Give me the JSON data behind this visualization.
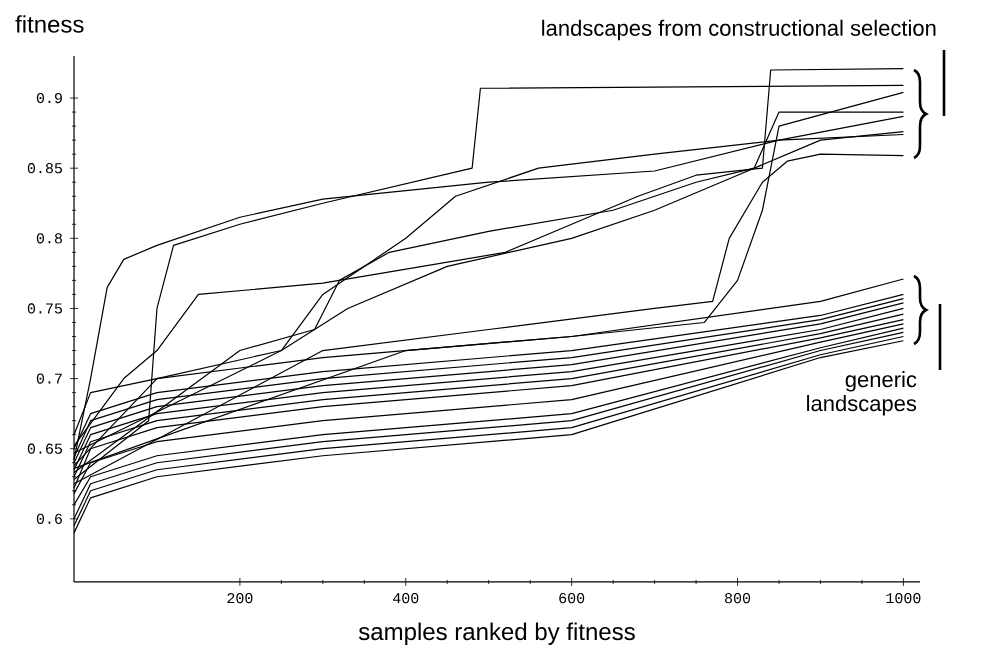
{
  "chart_data": {
    "type": "line",
    "xlabel": "samples ranked by fitness",
    "ylabel": "fitness",
    "xlim": [
      0,
      1020
    ],
    "ylim": [
      0.555,
      0.93
    ],
    "xticks": [
      200,
      400,
      600,
      800,
      1000
    ],
    "yticks": [
      0.6,
      0.65,
      0.7,
      0.75,
      0.8,
      0.85,
      0.9
    ],
    "grid": false,
    "marker": "none",
    "line_style": "solid",
    "annotations": [
      "landscapes from constructional selection",
      "generic landscapes"
    ],
    "series": [
      {
        "color": "#000000",
        "x": [
          0,
          20,
          40,
          60,
          100,
          200,
          300,
          500,
          700,
          850,
          1000
        ],
        "values": [
          0.642,
          0.7,
          0.765,
          0.785,
          0.795,
          0.815,
          0.828,
          0.84,
          0.848,
          0.87,
          0.874
        ]
      },
      {
        "color": "#000000",
        "x": [
          0,
          90,
          100,
          120,
          200,
          300,
          480,
          490,
          1000
        ],
        "values": [
          0.628,
          0.67,
          0.75,
          0.795,
          0.81,
          0.825,
          0.85,
          0.907,
          0.909
        ]
      },
      {
        "color": "#000000",
        "x": [
          0,
          60,
          100,
          150,
          300,
          420,
          520,
          600,
          680,
          750,
          830,
          840,
          1000
        ],
        "values": [
          0.652,
          0.7,
          0.72,
          0.76,
          0.768,
          0.78,
          0.79,
          0.81,
          0.83,
          0.845,
          0.85,
          0.92,
          0.921
        ]
      },
      {
        "color": "#000000",
        "x": [
          0,
          100,
          250,
          300,
          400,
          460,
          560,
          700,
          850,
          1000
        ],
        "values": [
          0.638,
          0.7,
          0.72,
          0.76,
          0.8,
          0.83,
          0.85,
          0.86,
          0.87,
          0.887
        ]
      },
      {
        "color": "#000000",
        "x": [
          0,
          200,
          290,
          320,
          380,
          500,
          650,
          750,
          820,
          850,
          1000
        ],
        "values": [
          0.633,
          0.72,
          0.735,
          0.77,
          0.79,
          0.805,
          0.82,
          0.84,
          0.85,
          0.89,
          0.89
        ]
      },
      {
        "color": "#000000",
        "x": [
          0,
          250,
          330,
          450,
          600,
          700,
          800,
          900,
          1000
        ],
        "values": [
          0.647,
          0.72,
          0.75,
          0.78,
          0.8,
          0.82,
          0.845,
          0.87,
          0.876
        ]
      },
      {
        "color": "#000000",
        "x": [
          0,
          300,
          500,
          700,
          770,
          790,
          830,
          860,
          900,
          1000
        ],
        "values": [
          0.625,
          0.72,
          0.735,
          0.75,
          0.755,
          0.8,
          0.84,
          0.855,
          0.86,
          0.859
        ]
      },
      {
        "color": "#000000",
        "x": [
          0,
          400,
          600,
          760,
          800,
          830,
          850,
          1000
        ],
        "values": [
          0.636,
          0.72,
          0.73,
          0.74,
          0.77,
          0.82,
          0.88,
          0.904
        ]
      },
      {
        "color": "#000000",
        "x": [
          0,
          20,
          100,
          300,
          600,
          900,
          1000
        ],
        "values": [
          0.66,
          0.69,
          0.7,
          0.715,
          0.73,
          0.755,
          0.771
        ]
      },
      {
        "color": "#000000",
        "x": [
          0,
          20,
          100,
          300,
          600,
          900,
          1000
        ],
        "values": [
          0.65,
          0.675,
          0.69,
          0.705,
          0.72,
          0.745,
          0.76
        ]
      },
      {
        "color": "#000000",
        "x": [
          0,
          20,
          100,
          300,
          600,
          900,
          1000
        ],
        "values": [
          0.644,
          0.67,
          0.685,
          0.7,
          0.715,
          0.742,
          0.757
        ]
      },
      {
        "color": "#000000",
        "x": [
          0,
          20,
          100,
          300,
          600,
          900,
          1000
        ],
        "values": [
          0.64,
          0.665,
          0.68,
          0.695,
          0.71,
          0.739,
          0.754
        ]
      },
      {
        "color": "#000000",
        "x": [
          0,
          20,
          100,
          300,
          600,
          900,
          1000
        ],
        "values": [
          0.635,
          0.66,
          0.675,
          0.69,
          0.705,
          0.735,
          0.75
        ]
      },
      {
        "color": "#000000",
        "x": [
          0,
          20,
          100,
          300,
          600,
          900,
          1000
        ],
        "values": [
          0.63,
          0.655,
          0.67,
          0.685,
          0.7,
          0.732,
          0.746
        ]
      },
      {
        "color": "#000000",
        "x": [
          0,
          20,
          100,
          300,
          600,
          900,
          1000
        ],
        "values": [
          0.622,
          0.65,
          0.665,
          0.68,
          0.695,
          0.729,
          0.742
        ]
      },
      {
        "color": "#000000",
        "x": [
          0,
          20,
          100,
          300,
          600,
          900,
          1000
        ],
        "values": [
          0.618,
          0.64,
          0.655,
          0.67,
          0.685,
          0.726,
          0.739
        ]
      },
      {
        "color": "#000000",
        "x": [
          0,
          20,
          100,
          300,
          600,
          900,
          1000
        ],
        "values": [
          0.61,
          0.63,
          0.645,
          0.66,
          0.675,
          0.722,
          0.736
        ]
      },
      {
        "color": "#000000",
        "x": [
          0,
          20,
          100,
          300,
          600,
          900,
          1000
        ],
        "values": [
          0.6,
          0.625,
          0.64,
          0.655,
          0.67,
          0.72,
          0.733
        ]
      },
      {
        "color": "#000000",
        "x": [
          0,
          20,
          100,
          300,
          600,
          900,
          1000
        ],
        "values": [
          0.595,
          0.62,
          0.635,
          0.65,
          0.665,
          0.717,
          0.73
        ]
      },
      {
        "color": "#000000",
        "x": [
          0,
          20,
          100,
          300,
          600,
          900,
          1000
        ],
        "values": [
          0.59,
          0.615,
          0.63,
          0.645,
          0.66,
          0.715,
          0.727
        ]
      }
    ]
  }
}
